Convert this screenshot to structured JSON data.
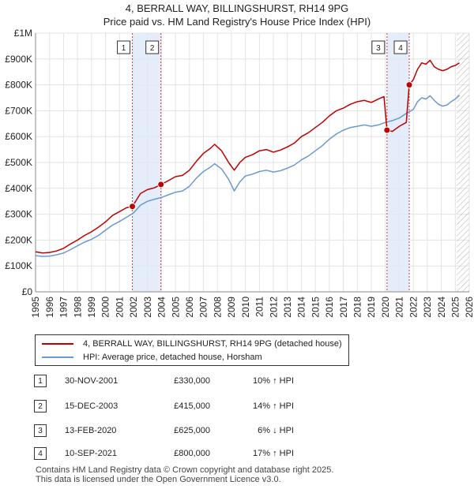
{
  "title": "4, BERRALL WAY, BILLINGSHURST, RH14 9PG",
  "subtitle": "Price paid vs. HM Land Registry's House Price Index (HPI)",
  "chart_data": {
    "type": "line",
    "title": "4, BERRALL WAY, BILLINGSHURST, RH14 9PG",
    "subtitle": "Price paid vs. HM Land Registry's House Price Index (HPI)",
    "xlabel": "",
    "ylabel": "",
    "xlim": [
      1995,
      2026
    ],
    "ylim": [
      0,
      1000000
    ],
    "grid": true,
    "y_ticks": [
      0,
      100000,
      200000,
      300000,
      400000,
      500000,
      600000,
      700000,
      800000,
      900000,
      1000000
    ],
    "y_tick_labels": [
      "£0",
      "£100K",
      "£200K",
      "£300K",
      "£400K",
      "£500K",
      "£600K",
      "£700K",
      "£800K",
      "£900K",
      "£1M"
    ],
    "x_ticks": [
      1995,
      1996,
      1997,
      1998,
      1999,
      2000,
      2001,
      2002,
      2003,
      2004,
      2005,
      2006,
      2007,
      2008,
      2009,
      2010,
      2011,
      2012,
      2013,
      2014,
      2015,
      2016,
      2017,
      2018,
      2019,
      2020,
      2021,
      2022,
      2023,
      2024,
      2025,
      2026
    ],
    "x_tick_labels": [
      "1995",
      "1996",
      "1997",
      "1998",
      "1999",
      "2000",
      "2001",
      "2002",
      "2003",
      "2004",
      "2005",
      "2006",
      "2007",
      "2008",
      "2009",
      "2010",
      "2011",
      "2012",
      "2013",
      "2014",
      "2015",
      "2016",
      "2017",
      "2018",
      "2019",
      "2020",
      "2021",
      "2022",
      "2023",
      "2024",
      "2025",
      "2026"
    ],
    "shaded_ranges": [
      [
        2001.92,
        2003.96
      ],
      [
        2020.12,
        2021.71
      ]
    ],
    "hatch_from": 2025.1,
    "series": [
      {
        "name": "4, BERRALL WAY, BILLINGSHURST, RH14 9PG (detached house)",
        "color": "#c00000",
        "x": [
          1995.0,
          1995.5,
          1996.0,
          1996.5,
          1997.0,
          1997.5,
          1998.0,
          1998.5,
          1999.0,
          1999.5,
          2000.0,
          2000.5,
          2001.0,
          2001.5,
          2001.92,
          2002.5,
          2003.0,
          2003.5,
          2003.96,
          2004.5,
          2005.0,
          2005.5,
          2006.0,
          2006.5,
          2007.0,
          2007.5,
          2007.8,
          2008.3,
          2008.8,
          2009.2,
          2009.6,
          2010.0,
          2010.5,
          2011.0,
          2011.5,
          2012.0,
          2012.5,
          2013.0,
          2013.5,
          2014.0,
          2014.5,
          2015.0,
          2015.5,
          2016.0,
          2016.5,
          2017.0,
          2017.5,
          2018.0,
          2018.5,
          2019.0,
          2019.5,
          2019.9,
          2020.12,
          2020.5,
          2021.0,
          2021.5,
          2021.71,
          2022.0,
          2022.3,
          2022.6,
          2022.9,
          2023.2,
          2023.5,
          2023.8,
          2024.1,
          2024.4,
          2024.7,
          2025.0,
          2025.3
        ],
        "values": [
          155000,
          150000,
          152000,
          158000,
          168000,
          185000,
          200000,
          218000,
          232000,
          250000,
          270000,
          295000,
          310000,
          325000,
          330000,
          380000,
          395000,
          402000,
          415000,
          430000,
          445000,
          450000,
          470000,
          505000,
          535000,
          555000,
          570000,
          545000,
          500000,
          470000,
          500000,
          520000,
          530000,
          545000,
          550000,
          540000,
          548000,
          560000,
          575000,
          600000,
          615000,
          635000,
          655000,
          680000,
          700000,
          710000,
          725000,
          735000,
          740000,
          732000,
          745000,
          755000,
          625000,
          620000,
          640000,
          655000,
          800000,
          820000,
          860000,
          885000,
          880000,
          895000,
          870000,
          860000,
          855000,
          860000,
          870000,
          875000,
          885000
        ]
      },
      {
        "name": "HPI: Average price, detached house, Horsham",
        "color": "#6a99d0",
        "x": [
          1995.0,
          1995.5,
          1996.0,
          1996.5,
          1997.0,
          1997.5,
          1998.0,
          1998.5,
          1999.0,
          1999.5,
          2000.0,
          2000.5,
          2001.0,
          2001.5,
          2002.0,
          2002.5,
          2003.0,
          2003.5,
          2004.0,
          2004.5,
          2005.0,
          2005.5,
          2006.0,
          2006.5,
          2007.0,
          2007.5,
          2007.8,
          2008.3,
          2008.8,
          2009.2,
          2009.6,
          2010.0,
          2010.5,
          2011.0,
          2011.5,
          2012.0,
          2012.5,
          2013.0,
          2013.5,
          2014.0,
          2014.5,
          2015.0,
          2015.5,
          2016.0,
          2016.5,
          2017.0,
          2017.5,
          2018.0,
          2018.5,
          2019.0,
          2019.5,
          2020.0,
          2020.5,
          2021.0,
          2021.5,
          2022.0,
          2022.3,
          2022.6,
          2022.9,
          2023.2,
          2023.5,
          2023.8,
          2024.1,
          2024.4,
          2024.7,
          2025.0,
          2025.3
        ],
        "values": [
          140000,
          137000,
          138000,
          143000,
          150000,
          163000,
          178000,
          192000,
          203000,
          218000,
          238000,
          258000,
          272000,
          288000,
          305000,
          335000,
          350000,
          358000,
          365000,
          375000,
          385000,
          390000,
          408000,
          440000,
          465000,
          482000,
          495000,
          475000,
          435000,
          390000,
          425000,
          448000,
          455000,
          465000,
          470000,
          463000,
          468000,
          478000,
          490000,
          510000,
          525000,
          545000,
          565000,
          590000,
          610000,
          625000,
          635000,
          640000,
          645000,
          640000,
          645000,
          655000,
          662000,
          672000,
          690000,
          705000,
          735000,
          750000,
          745000,
          758000,
          740000,
          725000,
          718000,
          722000,
          735000,
          745000,
          760000
        ]
      }
    ],
    "sales": [
      {
        "label": "1",
        "x": 2001.92,
        "value": 330000
      },
      {
        "label": "2",
        "x": 2003.96,
        "value": 415000
      },
      {
        "label": "3",
        "x": 2020.12,
        "value": 625000
      },
      {
        "label": "4",
        "x": 2021.71,
        "value": 800000
      }
    ]
  },
  "legend": {
    "property": "4, BERRALL WAY, BILLINGSHURST, RH14 9PG (detached house)",
    "hpi": "HPI: Average price, detached house, Horsham"
  },
  "transactions": [
    {
      "num": "1",
      "date": "30-NOV-2001",
      "price": "£330,000",
      "hpi": "10% ↑ HPI"
    },
    {
      "num": "2",
      "date": "15-DEC-2003",
      "price": "£415,000",
      "hpi": "14% ↑ HPI"
    },
    {
      "num": "3",
      "date": "13-FEB-2020",
      "price": "£625,000",
      "hpi": "6% ↓ HPI"
    },
    {
      "num": "4",
      "date": "10-SEP-2021",
      "price": "£800,000",
      "hpi": "17% ↑ HPI"
    }
  ],
  "footer": {
    "line1": "Contains HM Land Registry data © Crown copyright and database right 2025.",
    "line2": "This data is licensed under the Open Government Licence v3.0."
  }
}
